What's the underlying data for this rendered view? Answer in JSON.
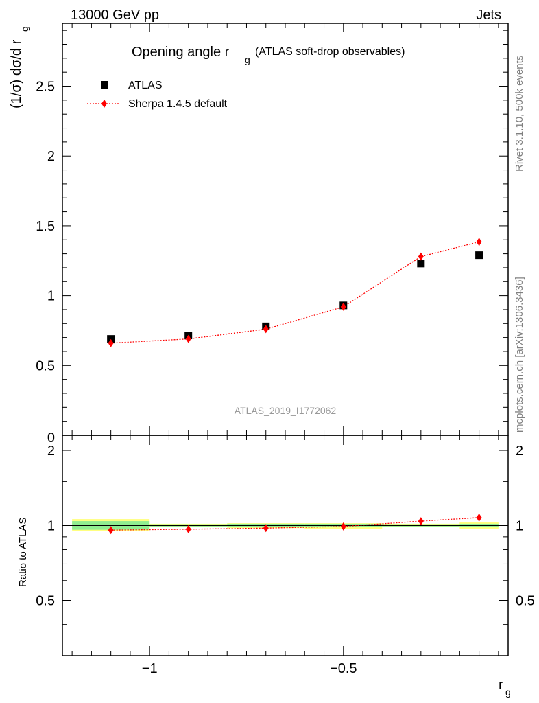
{
  "header": {
    "left": "13000 GeV pp",
    "right": "Jets"
  },
  "side_labels": {
    "rivet": "Rivet 3.1.10,  500k events",
    "mcplots": "mcplots.cern.ch [arXiv:1306.3436]"
  },
  "watermark": "ATLAS_2019_I1772062",
  "chart_data": [
    {
      "type": "scatter",
      "panel": "main",
      "title": "Opening angle r",
      "title_sub": "g",
      "title_suffix": "(ATLAS soft-drop observables)",
      "ylabel": "(1/σ) dσ/d r",
      "ylabel_sub": "g",
      "xlim": [
        -1.225,
        -0.075
      ],
      "ylim": [
        0,
        2.95
      ],
      "yticks": [
        0.5,
        1,
        1.5,
        2,
        2.5
      ],
      "ytick_labels": [
        "0.5",
        "1",
        "1.5",
        "2",
        "2.5"
      ],
      "y_zero_label": "0",
      "legend_position": "top-left",
      "x": [
        -1.1,
        -0.9,
        -0.7,
        -0.5,
        -0.3,
        -0.15
      ],
      "series": [
        {
          "name": "ATLAS",
          "marker": "square",
          "color": "#000000",
          "values": [
            0.69,
            0.715,
            0.78,
            0.93,
            1.23,
            1.29
          ]
        },
        {
          "name": "Sherpa 1.4.5 default",
          "marker": "diamond",
          "line": "dotted",
          "color": "#ff0000",
          "values": [
            0.66,
            0.69,
            0.76,
            0.92,
            1.28,
            1.385
          ],
          "errors": [
            0.012,
            0.012,
            0.012,
            0.015,
            0.02,
            0.03
          ]
        }
      ]
    },
    {
      "type": "scatter",
      "panel": "ratio",
      "ylabel": "Ratio to ATLAS",
      "xlabel": "r",
      "xlabel_sub": "g",
      "xlim": [
        -1.225,
        -0.075
      ],
      "ylim": [
        0.3,
        2.3
      ],
      "xticks": [
        -1,
        -0.5
      ],
      "xtick_labels": [
        "−1",
        "−0.5"
      ],
      "yticks": [
        0.5,
        1,
        2
      ],
      "ytick_labels": [
        "0.5",
        "1",
        "2"
      ],
      "band_bins": [
        {
          "x0": -1.2,
          "x1": -1.0,
          "inner": [
            0.96,
            1.04
          ],
          "outer": [
            0.95,
            1.06
          ]
        },
        {
          "x0": -1.0,
          "x1": -0.8,
          "inner": [
            0.99,
            1.01
          ],
          "outer": [
            0.985,
            1.015
          ]
        },
        {
          "x0": -0.8,
          "x1": -0.6,
          "inner": [
            0.985,
            1.015
          ],
          "outer": [
            0.975,
            1.02
          ]
        },
        {
          "x0": -0.6,
          "x1": -0.4,
          "inner": [
            0.985,
            1.015
          ],
          "outer": [
            0.97,
            1.02
          ]
        },
        {
          "x0": -0.4,
          "x1": -0.2,
          "inner": [
            0.99,
            1.01
          ],
          "outer": [
            0.985,
            1.015
          ]
        },
        {
          "x0": -0.2,
          "x1": -0.1,
          "inner": [
            0.985,
            1.015
          ],
          "outer": [
            0.97,
            1.03
          ]
        }
      ],
      "band_colors": {
        "inner": "#90ee90",
        "outer": "#ffff80"
      },
      "x": [
        -1.1,
        -0.9,
        -0.7,
        -0.5,
        -0.3,
        -0.15
      ],
      "series": [
        {
          "name": "Sherpa 1.4.5 default",
          "marker": "diamond",
          "line": "dotted",
          "color": "#ff0000",
          "values": [
            0.957,
            0.965,
            0.975,
            0.99,
            1.04,
            1.075
          ]
        }
      ]
    }
  ]
}
